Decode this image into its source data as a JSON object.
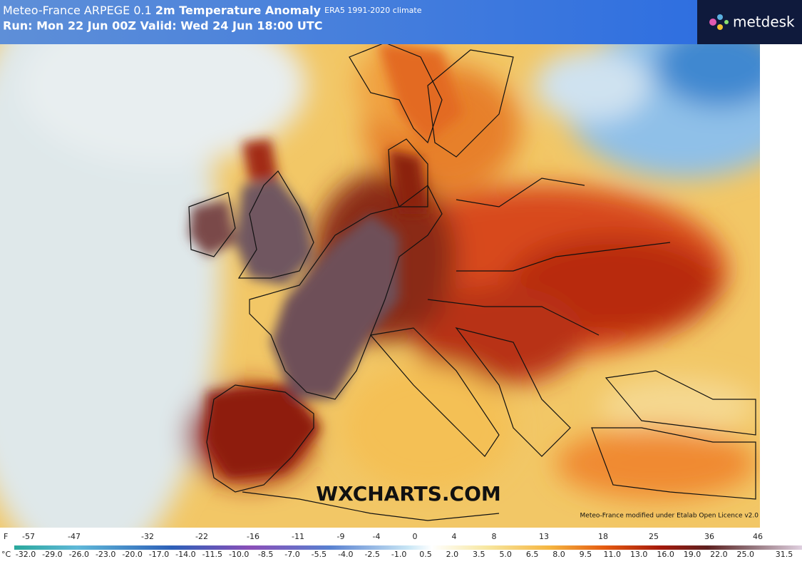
{
  "header": {
    "model": "Meteo-France ARPEGE 0.1",
    "product": "2m Temperature Anomaly",
    "climate": "ERA5 1991-2020 climate",
    "run": "Run: Mon 22 Jun 00Z Valid: Wed 24 Jun 18:00 UTC"
  },
  "logo": "metdesk",
  "watermark": "WXCHARTS.COM",
  "credit": "Meteo-France modified under Etalab Open Licence v2.0",
  "legend": {
    "f_unit": "F",
    "f_labels": [
      -57,
      -47,
      -32,
      -22,
      -16,
      -11,
      -9,
      -4,
      0,
      4,
      8,
      13,
      18,
      25,
      36,
      46
    ],
    "c_unit": "°C",
    "c_labels": [
      "-32.0",
      "-29.0",
      "-26.0",
      "-23.0",
      "-20.0",
      "-17.0",
      "-14.0",
      "-11.5",
      "-10.0",
      "-8.5",
      "-7.0",
      "-5.5",
      "-4.0",
      "-2.5",
      "-1.0",
      "0.5",
      "2.0",
      "3.5",
      "5.0",
      "6.5",
      "8.0",
      "9.5",
      "11.0",
      "13.0",
      "16.0",
      "19.0",
      "22.0",
      "25.0",
      "31.5"
    ]
  }
}
